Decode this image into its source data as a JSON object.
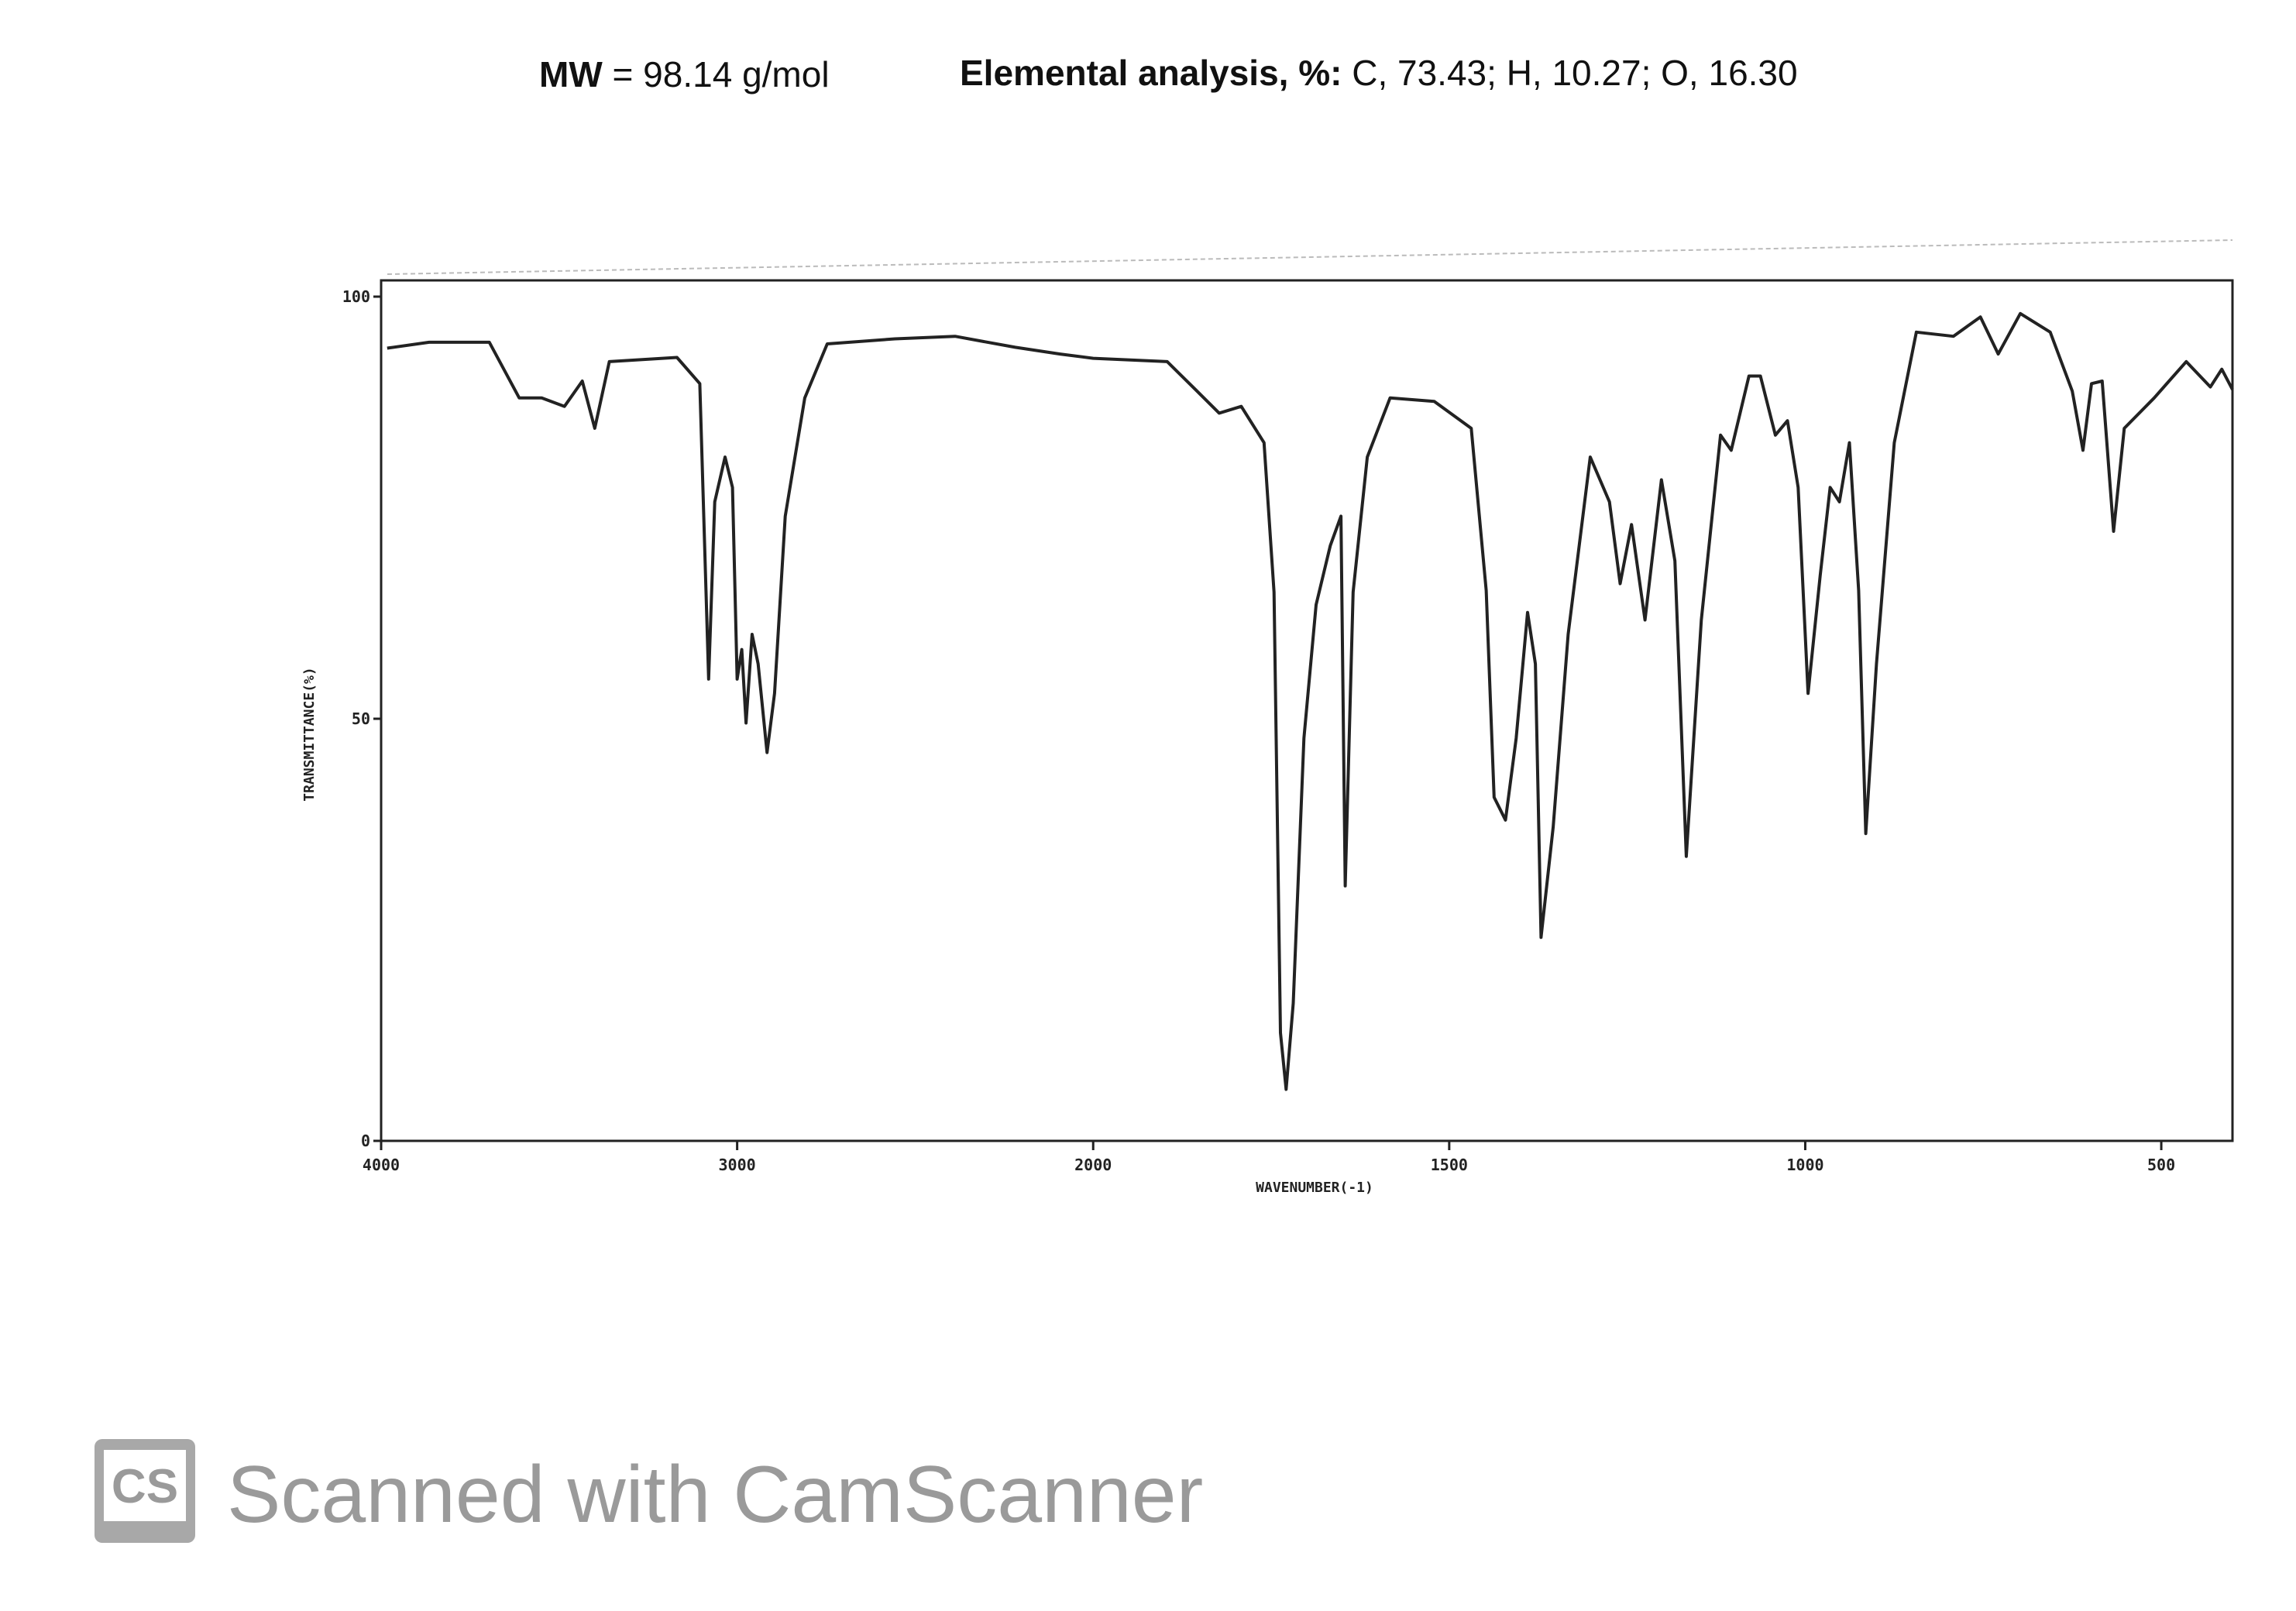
{
  "header": {
    "mw_label": "MW",
    "mw_value": "= 98.14 g/mol",
    "ea_label": "Elemental analysis, %:",
    "ea_value": "C, 73.43; H, 10.27; O, 16.30"
  },
  "chart_data": {
    "type": "line",
    "xlabel": "WAVENUMBER(-1)",
    "ylabel": "TRANSMITTANCE(%)",
    "xlim": [
      4000,
      400
    ],
    "ylim": [
      0,
      100
    ],
    "xticks": [
      4000,
      3000,
      2000,
      1500,
      1000,
      500
    ],
    "yticks": [
      0,
      50,
      100
    ],
    "x_scale": {
      "break": 2000,
      "factor": 2
    },
    "series": [
      {
        "color": "#222222",
        "x": [
          3983,
          3865,
          3696,
          3612,
          3549,
          3485,
          3435,
          3400,
          3359,
          3169,
          3105,
          3080,
          3063,
          3034,
          3013,
          3000,
          2987,
          2975,
          2958,
          2941,
          2916,
          2895,
          2865,
          2810,
          2747,
          2557,
          2388,
          2219,
          2093,
          2000,
          1896,
          1854,
          1823,
          1792,
          1760,
          1746,
          1737,
          1729,
          1719,
          1704,
          1687,
          1667,
          1652,
          1646,
          1635,
          1615,
          1583,
          1521,
          1469,
          1448,
          1437,
          1421,
          1406,
          1390,
          1379,
          1371,
          1354,
          1333,
          1302,
          1275,
          1260,
          1244,
          1225,
          1202,
          1183,
          1167,
          1146,
          1119,
          1104,
          1079,
          1063,
          1042,
          1025,
          1010,
          996,
          979,
          965,
          952,
          938,
          925,
          915,
          900,
          875,
          844,
          792,
          754,
          729,
          698,
          656,
          625,
          610,
          598,
          583,
          567,
          552,
          510,
          465,
          431,
          415,
          400
        ],
        "values": [
          93.9,
          94.6,
          94.6,
          88,
          88,
          87,
          90,
          84.4,
          92.3,
          92.8,
          89.7,
          54.7,
          75.7,
          81,
          77.4,
          54.7,
          58.2,
          49.5,
          60,
          56.5,
          46,
          53,
          74,
          88,
          94.4,
          95,
          95.3,
          94,
          93.2,
          92.7,
          92.3,
          88.8,
          86.2,
          87,
          82.7,
          65,
          12.8,
          6.1,
          16.3,
          47.7,
          63.5,
          70.5,
          74,
          30.2,
          65,
          81,
          88,
          87.6,
          84.4,
          65.2,
          40.7,
          38,
          47.7,
          62.6,
          56.5,
          24.1,
          37.2,
          60,
          81,
          75.7,
          66,
          73,
          61.7,
          78.3,
          68.7,
          33.7,
          61.7,
          83.6,
          81.8,
          90.6,
          90.6,
          83.6,
          85.3,
          77.4,
          53,
          67,
          77.4,
          75.7,
          82.7,
          65.2,
          36.4,
          56.5,
          82.7,
          95.8,
          95.3,
          97.6,
          93.2,
          98,
          95.8,
          88.8,
          81.8,
          89.7,
          90,
          72.2,
          84.4,
          88,
          92.3,
          89.3,
          91.4,
          89
        ]
      }
    ]
  },
  "watermark": {
    "logo": "CS",
    "text": "Scanned with CamScanner"
  }
}
